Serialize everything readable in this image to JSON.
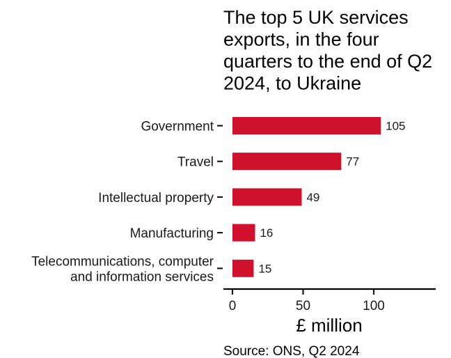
{
  "chart_data": {
    "type": "bar",
    "orientation": "horizontal",
    "title": "The top 5 UK services exports, in the four quarters to the end of Q2 2024, to Ukraine",
    "title_lines": [
      "The top 5 UK services",
      "exports, in the four",
      "quarters to the end of Q2",
      "2024, to Ukraine"
    ],
    "categories": [
      "Government",
      "Travel",
      "Intellectual property",
      "Manufacturing",
      "Telecommunications, computer and information services"
    ],
    "category_lines": [
      [
        "Government"
      ],
      [
        "Travel"
      ],
      [
        "Intellectual property"
      ],
      [
        "Manufacturing"
      ],
      [
        "Telecommunications, computer",
        "and information services"
      ]
    ],
    "values": [
      105,
      77,
      49,
      16,
      15
    ],
    "value_labels": [
      "105",
      "77",
      "49",
      "16",
      "15"
    ],
    "xlabel": "£ million",
    "ylabel": "",
    "xlim": [
      0,
      140
    ],
    "xticks": [
      0,
      50,
      100
    ],
    "xtick_labels": [
      "0",
      "50",
      "100"
    ],
    "bar_color": "#d0112b",
    "grid": false,
    "legend": "none",
    "caption": "Source: ONS, Q2 2024"
  }
}
